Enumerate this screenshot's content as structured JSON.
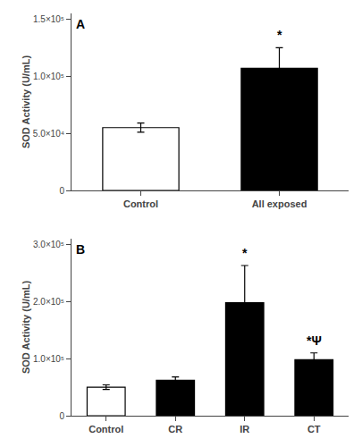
{
  "chart_data": [
    {
      "type": "bar",
      "title": "A",
      "categories": [
        "Control",
        "All exposed"
      ],
      "values": [
        55000,
        107000
      ],
      "errors": [
        4000,
        18000
      ],
      "colors": [
        "white",
        "black"
      ],
      "ylim": [
        0,
        155000
      ],
      "yticks": [
        0,
        {
          "value": 50000,
          "label": "5.0×10⁴"
        },
        {
          "value": 100000,
          "label": "1.0×10⁵"
        },
        {
          "value": 150000,
          "label": "1.5×10⁵"
        }
      ],
      "ylabel": "SOD Activity (U/mL)",
      "grid": false,
      "annotations": [
        {
          "text": "*",
          "x": "All exposed",
          "y": 128000
        }
      ]
    },
    {
      "type": "bar",
      "title": "B",
      "categories": [
        "Control",
        "CR",
        "IR",
        "CT"
      ],
      "values": [
        50000,
        62000,
        198000,
        98000
      ],
      "errors": [
        4000,
        6000,
        65000,
        12000
      ],
      "colors": [
        "white",
        "black",
        "black",
        "black"
      ],
      "ylim": [
        0,
        310000
      ],
      "yticks": [
        0,
        {
          "value": 100000,
          "label": "1.0×10⁵"
        },
        {
          "value": 200000,
          "label": "2.0×10⁵"
        },
        {
          "value": 300000,
          "label": "3.0×10⁵"
        }
      ],
      "ylabel": "SOD Activity (U/mL)",
      "grid": false,
      "annotations": [
        {
          "text": "*",
          "x": "IR",
          "y": 270000
        },
        {
          "text": "*Ψ",
          "x": "CT",
          "y": 116000
        }
      ]
    }
  ]
}
